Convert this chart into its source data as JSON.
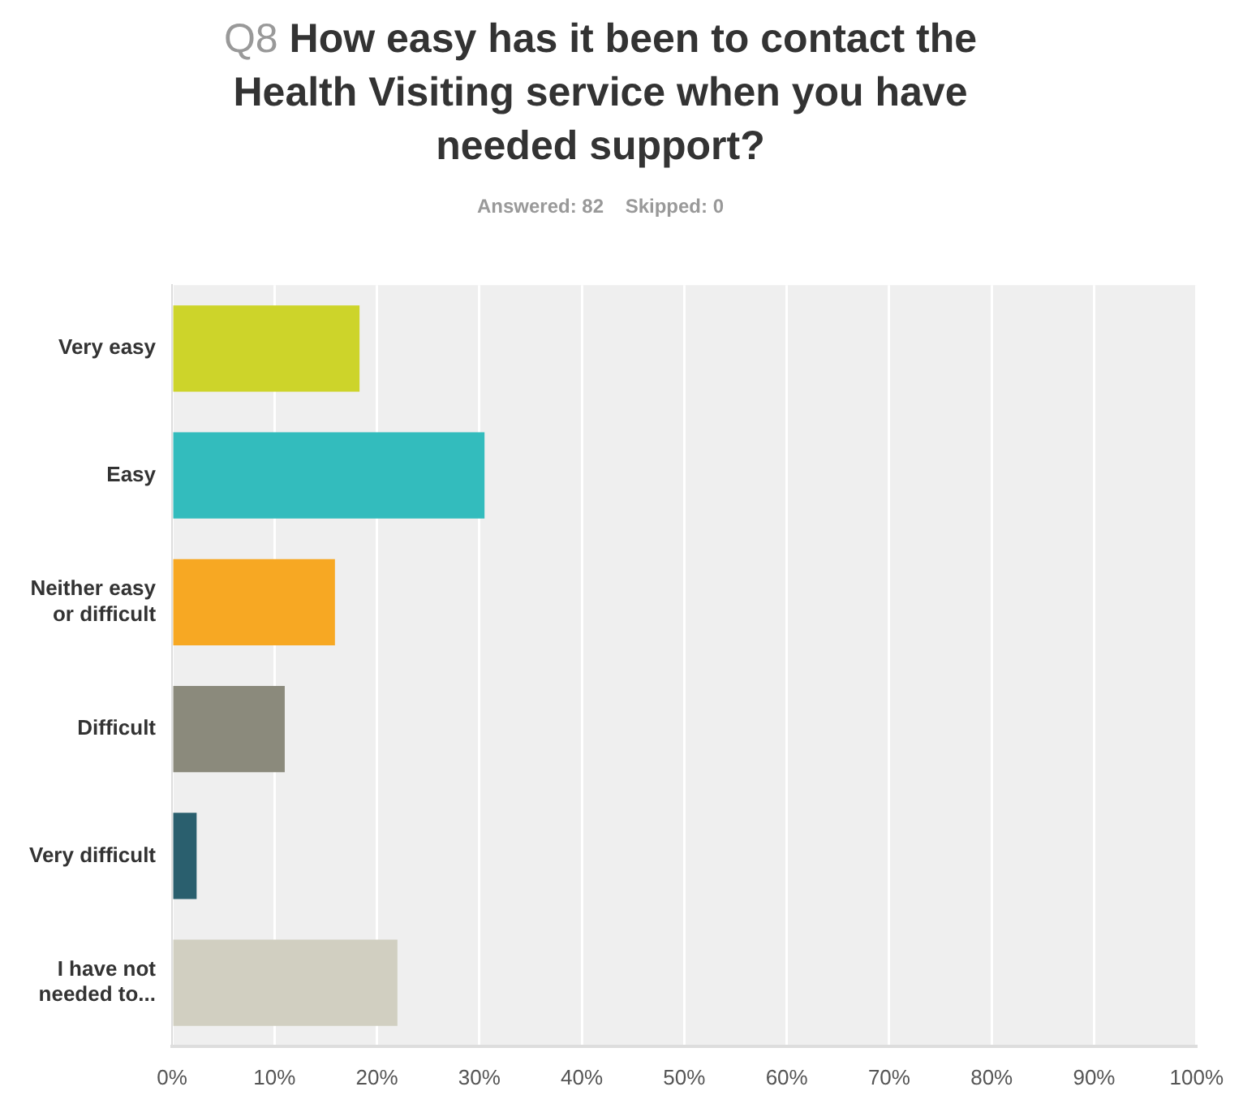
{
  "chart_data": {
    "type": "bar",
    "orientation": "horizontal",
    "title": "Q8 How easy has it been to contact the Health Visiting service when you have needed support?",
    "subtitle": "Answered: 82    Skipped: 0",
    "categories": [
      "Very easy",
      "Easy",
      "Neither easy or difficult",
      "Difficult",
      "Very difficult",
      "I have not needed to..."
    ],
    "values": [
      18.3,
      30.5,
      15.9,
      11.0,
      2.4,
      22.0
    ],
    "colors": [
      "#cdd42a",
      "#33bcbd",
      "#f7a823",
      "#8b8a7c",
      "#2a5f6e",
      "#d1cfc1"
    ],
    "xlim": [
      0,
      100
    ],
    "xticks": [
      {
        "value": 0,
        "label": "0%"
      },
      {
        "value": 10,
        "label": "10%"
      },
      {
        "value": 20,
        "label": "20%"
      },
      {
        "value": 30,
        "label": "30%"
      },
      {
        "value": 40,
        "label": "40%"
      },
      {
        "value": 50,
        "label": "50%"
      },
      {
        "value": 60,
        "label": "60%"
      },
      {
        "value": 70,
        "label": "70%"
      },
      {
        "value": 80,
        "label": "80%"
      },
      {
        "value": 90,
        "label": "90%"
      },
      {
        "value": 100,
        "label": "100%"
      }
    ],
    "grid": "x",
    "legend": false
  }
}
